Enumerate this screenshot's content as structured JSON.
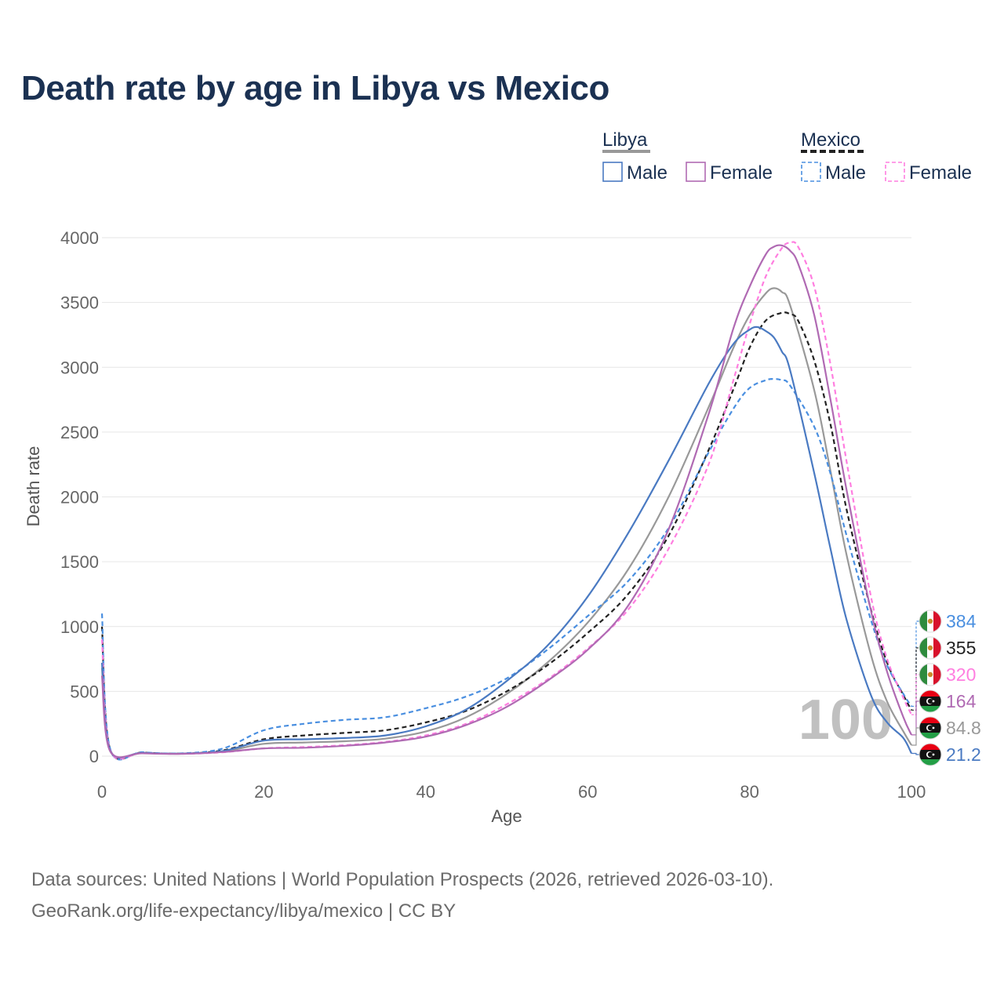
{
  "page": {
    "title": "Death rate by age in Libya vs Mexico",
    "source_line": "Data sources: United Nations | World Population Prospects (2026, retrieved 2026-03-10).",
    "credit_line": "GeoRank.org/life-expectancy/libya/mexico | CC BY"
  },
  "legend": {
    "groups": [
      {
        "label": "Libya",
        "style": "solid",
        "items": [
          {
            "label": "Male",
            "series": "Libya Male"
          },
          {
            "label": "Female",
            "series": "Libya Female"
          }
        ]
      },
      {
        "label": "Mexico",
        "style": "dashed",
        "items": [
          {
            "label": "Male",
            "series": "Mexico Male"
          },
          {
            "label": "Female",
            "series": "Mexico Female"
          }
        ]
      }
    ]
  },
  "overlay": {
    "age_label": "100"
  },
  "chart_data": {
    "type": "line",
    "title": "Death rate by age in Libya vs Mexico",
    "xlabel": "Age",
    "ylabel": "Death rate",
    "xlim": [
      0,
      100
    ],
    "ylim": [
      0,
      4000
    ],
    "xticks": [
      0,
      20,
      40,
      60,
      80,
      100
    ],
    "yticks": [
      0,
      500,
      1000,
      1500,
      2000,
      2500,
      3000,
      3500,
      4000
    ],
    "grid": true,
    "series": [
      {
        "name": "Libya Male",
        "country": "Libya",
        "sex": "Male",
        "color": "#4a7ac2",
        "dash": false,
        "end_label": "21.2",
        "x": [
          0,
          1,
          5,
          10,
          15,
          20,
          25,
          30,
          35,
          40,
          45,
          50,
          55,
          60,
          65,
          70,
          75,
          78,
          80,
          81,
          82,
          83,
          84,
          85,
          88,
          90,
          92,
          95,
          97,
          99,
          100
        ],
        "y": [
          720,
          45,
          25,
          20,
          40,
          120,
          130,
          140,
          160,
          230,
          360,
          580,
          850,
          1230,
          1720,
          2280,
          2880,
          3180,
          3290,
          3310,
          3280,
          3230,
          3120,
          2980,
          2180,
          1600,
          1050,
          470,
          260,
          140,
          21.2
        ]
      },
      {
        "name": "Libya Female",
        "country": "Libya",
        "sex": "Female",
        "color": "#b06ab3",
        "dash": false,
        "end_label": "164",
        "x": [
          0,
          1,
          5,
          10,
          15,
          20,
          25,
          30,
          35,
          40,
          45,
          50,
          55,
          60,
          65,
          70,
          75,
          78,
          80,
          82,
          83,
          84,
          85,
          86,
          88,
          90,
          92,
          95,
          97,
          99,
          100
        ],
        "y": [
          620,
          40,
          22,
          18,
          32,
          60,
          65,
          80,
          105,
          150,
          240,
          380,
          580,
          820,
          1160,
          1750,
          2650,
          3300,
          3620,
          3870,
          3930,
          3940,
          3900,
          3800,
          3400,
          2750,
          2050,
          1120,
          650,
          300,
          164
        ]
      },
      {
        "name": "Libya Both",
        "country": "Libya",
        "sex": "Both",
        "color": "#999999",
        "dash": false,
        "end_label": "84.8",
        "x": [
          0,
          1,
          5,
          10,
          15,
          20,
          25,
          30,
          35,
          40,
          45,
          50,
          55,
          60,
          65,
          70,
          75,
          78,
          80,
          82,
          83,
          84,
          85,
          88,
          90,
          92,
          95,
          97,
          99,
          100
        ],
        "y": [
          680,
          42,
          24,
          19,
          36,
          95,
          105,
          115,
          135,
          190,
          300,
          480,
          720,
          1030,
          1440,
          2000,
          2700,
          3150,
          3400,
          3570,
          3610,
          3580,
          3480,
          2820,
          2200,
          1550,
          780,
          420,
          190,
          84.8
        ]
      },
      {
        "name": "Mexico Male",
        "country": "Mexico",
        "sex": "Male",
        "color": "#4a8fe0",
        "dash": true,
        "end_label": "384",
        "x": [
          0,
          1,
          5,
          10,
          15,
          20,
          25,
          30,
          35,
          40,
          45,
          50,
          55,
          60,
          65,
          70,
          75,
          78,
          80,
          82,
          83,
          84,
          85,
          88,
          90,
          92,
          95,
          97,
          99,
          100
        ],
        "y": [
          1100,
          60,
          30,
          22,
          60,
          200,
          250,
          280,
          300,
          370,
          460,
          600,
          820,
          1080,
          1350,
          1760,
          2350,
          2680,
          2840,
          2900,
          2910,
          2900,
          2860,
          2540,
          2180,
          1700,
          1050,
          700,
          480,
          384
        ]
      },
      {
        "name": "Mexico Female",
        "country": "Mexico",
        "sex": "Female",
        "color": "#ff7ee0",
        "dash": true,
        "end_label": "320",
        "x": [
          0,
          1,
          5,
          10,
          15,
          20,
          25,
          30,
          35,
          40,
          45,
          50,
          55,
          60,
          65,
          70,
          75,
          78,
          80,
          82,
          84,
          85,
          86,
          88,
          90,
          92,
          95,
          97,
          99,
          100
        ],
        "y": [
          900,
          50,
          25,
          18,
          30,
          60,
          70,
          85,
          110,
          160,
          250,
          400,
          590,
          830,
          1130,
          1600,
          2260,
          2900,
          3330,
          3700,
          3920,
          3960,
          3930,
          3620,
          3020,
          2270,
          1230,
          750,
          450,
          320
        ]
      },
      {
        "name": "Mexico Both",
        "country": "Mexico",
        "sex": "Both",
        "color": "#222222",
        "dash": true,
        "end_label": "355",
        "x": [
          0,
          1,
          5,
          10,
          15,
          20,
          25,
          30,
          35,
          40,
          45,
          50,
          55,
          60,
          65,
          70,
          75,
          78,
          80,
          82,
          84,
          85,
          86,
          88,
          90,
          92,
          95,
          97,
          99,
          100
        ],
        "y": [
          1000,
          55,
          28,
          20,
          45,
          130,
          160,
          180,
          200,
          260,
          350,
          500,
          700,
          950,
          1250,
          1700,
          2370,
          2830,
          3150,
          3360,
          3420,
          3410,
          3360,
          3050,
          2560,
          1900,
          1130,
          720,
          470,
          355
        ]
      }
    ]
  }
}
